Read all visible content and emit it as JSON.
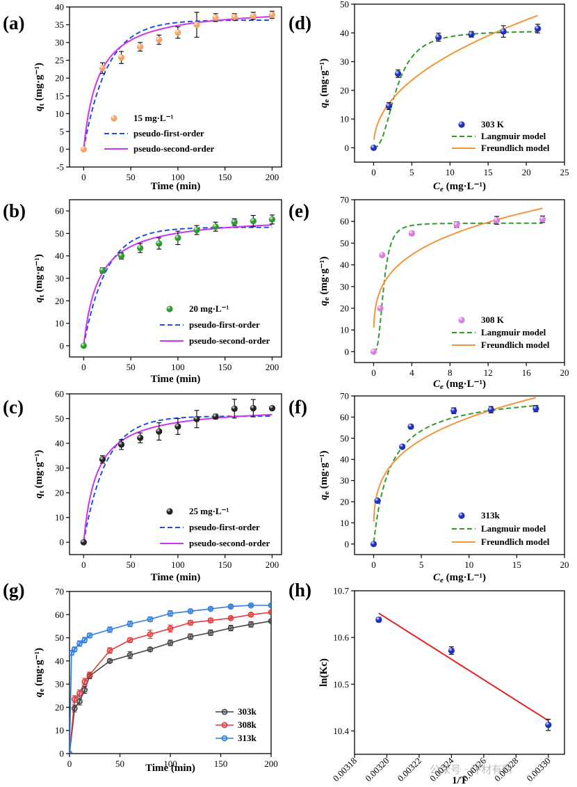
{
  "watermark": "公众号 · 环材有料",
  "chart_data": [
    {
      "id": "a",
      "panel_label": "(a)",
      "type": "line",
      "xlabel": "Time (min)",
      "ylabel_main": "q",
      "ylabel_sub": "t",
      "ylabel_unit": " (mg·g⁻¹)",
      "xlim": [
        -15,
        210
      ],
      "ylim": [
        -5,
        40
      ],
      "xticks": [
        0,
        50,
        100,
        150,
        200
      ],
      "yticks": [
        -5,
        0,
        5,
        10,
        15,
        20,
        25,
        30,
        35,
        40
      ],
      "legend_position": "bottom-right",
      "series": [
        {
          "name": "15 mg·L⁻¹",
          "kind": "points",
          "marker": "ball",
          "color": "#f4a46a",
          "x": [
            0,
            20,
            40,
            60,
            80,
            100,
            120,
            140,
            160,
            180,
            200
          ],
          "y": [
            0,
            22.8,
            25.8,
            28.8,
            30.8,
            32.8,
            35.0,
            37.0,
            37.2,
            37.5,
            37.8
          ],
          "err": [
            0,
            1.5,
            1.7,
            1.2,
            1.3,
            1.6,
            3.5,
            1.1,
            0.9,
            1.0,
            1.0
          ]
        },
        {
          "name": "pseudo-first-order",
          "kind": "model",
          "model": "pfo",
          "params": {
            "qe": 36.3,
            "k": 0.04
          },
          "color": "#1f4fe0",
          "dash": true
        },
        {
          "name": "pseudo-second-order",
          "kind": "model",
          "model": "pso",
          "params": {
            "qe": 40.2,
            "k": 0.0016
          },
          "color": "#cc33ee",
          "dash": false
        }
      ]
    },
    {
      "id": "b",
      "panel_label": "(b)",
      "type": "line",
      "xlabel": "Time (min)",
      "ylabel_main": "q",
      "ylabel_sub": "t",
      "ylabel_unit": " (mg·g⁻¹)",
      "xlim": [
        -15,
        210
      ],
      "ylim": [
        -5,
        65
      ],
      "xticks": [
        0,
        50,
        100,
        150,
        200
      ],
      "yticks": [
        0,
        10,
        20,
        30,
        40,
        50,
        60
      ],
      "legend_position": "bottom-right",
      "series": [
        {
          "name": "20 mg·L⁻¹",
          "kind": "points",
          "marker": "ball",
          "color": "#2e9a2e",
          "x": [
            0,
            20,
            40,
            60,
            80,
            100,
            120,
            140,
            160,
            180,
            200
          ],
          "y": [
            0,
            33.5,
            40,
            43.5,
            45.5,
            48,
            51.5,
            53,
            55,
            55.5,
            56.2
          ],
          "err": [
            0,
            1.2,
            1.4,
            2.0,
            2.5,
            3.0,
            2.0,
            2.0,
            1.5,
            2.5,
            2.0
          ]
        },
        {
          "name": "pseudo-first-order",
          "kind": "model",
          "model": "pfo",
          "params": {
            "qe": 52.7,
            "k": 0.042
          },
          "color": "#1f4fe0",
          "dash": true
        },
        {
          "name": "pseudo-second-order",
          "kind": "model",
          "model": "pso",
          "params": {
            "qe": 58.0,
            "k": 0.0011
          },
          "color": "#cc33ee",
          "dash": false
        }
      ]
    },
    {
      "id": "c",
      "panel_label": "(c)",
      "type": "line",
      "xlabel": "Time (min)",
      "ylabel_main": "q",
      "ylabel_sub": "t",
      "ylabel_unit": " (mg·g⁻¹)",
      "xlim": [
        -15,
        210
      ],
      "ylim": [
        -5,
        60
      ],
      "xticks": [
        0,
        50,
        100,
        150,
        200
      ],
      "yticks": [
        0,
        10,
        20,
        30,
        40,
        50,
        60
      ],
      "legend_position": "bottom-right",
      "series": [
        {
          "name": "25 mg·L⁻¹",
          "kind": "points",
          "marker": "ball",
          "color": "#222222",
          "x": [
            0,
            20,
            40,
            60,
            80,
            100,
            120,
            140,
            160,
            180,
            200
          ],
          "y": [
            0,
            33.5,
            39.5,
            42.2,
            44.8,
            46.8,
            49.8,
            50.8,
            54.0,
            54.2,
            54.2
          ],
          "err": [
            0,
            1.5,
            2.0,
            2.0,
            3.5,
            3.2,
            3.5,
            1.0,
            3.8,
            3.5,
            0.8
          ]
        },
        {
          "name": "pseudo-first-order",
          "kind": "model",
          "model": "pfo",
          "params": {
            "qe": 51.0,
            "k": 0.042
          },
          "color": "#1f4fe0",
          "dash": true
        },
        {
          "name": "pseudo-second-order",
          "kind": "model",
          "model": "pso",
          "params": {
            "qe": 55.2,
            "k": 0.0013
          },
          "color": "#cc33ee",
          "dash": false
        }
      ]
    },
    {
      "id": "d",
      "panel_label": "(d)",
      "type": "line",
      "xlabel_main": "C",
      "xlabel_sub": "e",
      "xlabel_unit": " (mg·L⁻¹)",
      "ylabel_main": "q",
      "ylabel_sub": "e",
      "ylabel_unit": " (mg·g⁻¹)",
      "xlim": [
        -2.5,
        25
      ],
      "ylim": [
        -5,
        50
      ],
      "xticks": [
        0,
        5,
        10,
        15,
        20,
        25
      ],
      "yticks": [
        0,
        10,
        20,
        30,
        40,
        50
      ],
      "legend_position": "bottom-right",
      "series": [
        {
          "name": "303 K",
          "kind": "points",
          "marker": "ball",
          "color": "#1f2fc0",
          "x": [
            0,
            2,
            3.2,
            8.5,
            12.8,
            17,
            21.5
          ],
          "y": [
            0,
            14.5,
            25.8,
            38.5,
            39.5,
            40.5,
            41.5
          ],
          "err": [
            0,
            1.2,
            1.3,
            1.4,
            1.0,
            2.0,
            1.5
          ]
        },
        {
          "name": "Langmuir model",
          "kind": "model",
          "model": "langmuir_hill",
          "params": {
            "qm": 40.8,
            "K": 3.0,
            "n": 2.4
          },
          "x_range": [
            0,
            21.5
          ],
          "color": "#2e9a2e",
          "dash": true
        },
        {
          "name": "Freundlich model",
          "kind": "model",
          "model": "freundlich",
          "params": {
            "KF": 11.2,
            "n": 2.17
          },
          "x_range": [
            0.05,
            21.5
          ],
          "color": "#f2943a",
          "dash": false
        }
      ]
    },
    {
      "id": "e",
      "panel_label": "(e)",
      "type": "line",
      "xlabel_main": "C",
      "xlabel_sub": "e",
      "xlabel_unit": " (mg·L⁻¹)",
      "ylabel_main": "q",
      "ylabel_sub": "e",
      "ylabel_unit": " (mg·g⁻¹)",
      "xlim": [
        -2,
        20
      ],
      "ylim": [
        -5,
        70
      ],
      "xticks": [
        0,
        4,
        8,
        12,
        16,
        20
      ],
      "yticks": [
        0,
        10,
        20,
        30,
        40,
        50,
        60,
        70
      ],
      "legend_position": "bottom-right",
      "series": [
        {
          "name": "308 K",
          "kind": "points",
          "marker": "ball",
          "color": "#d97fe0",
          "x": [
            0,
            0.7,
            0.9,
            4,
            8.7,
            12.9,
            17.7
          ],
          "y": [
            0,
            20,
            44.5,
            54.5,
            58.5,
            60.5,
            61
          ],
          "err": [
            0,
            0.5,
            0.7,
            1.0,
            1.3,
            1.8,
            1.5
          ]
        },
        {
          "name": "Langmuir model",
          "kind": "model",
          "model": "langmuir_hill",
          "params": {
            "qm": 59.2,
            "K": 1.05,
            "n": 3.0
          },
          "x_range": [
            0,
            17.7
          ],
          "color": "#2e9a2e",
          "dash": true
        },
        {
          "name": "Freundlich model",
          "kind": "model",
          "model": "freundlich",
          "params": {
            "KF": 31.0,
            "n": 3.8
          },
          "x_range": [
            0.02,
            17.7
          ],
          "color": "#f2943a",
          "dash": false
        }
      ]
    },
    {
      "id": "f",
      "panel_label": "(f)",
      "type": "line",
      "xlabel_main": "C",
      "xlabel_sub": "e",
      "xlabel_unit": " (mg·L⁻¹)",
      "ylabel_main": "q",
      "ylabel_sub": "e",
      "ylabel_unit": " (mg·g⁻¹)",
      "xlim": [
        -2,
        20
      ],
      "ylim": [
        -5,
        70
      ],
      "xticks": [
        0,
        5,
        10,
        15,
        20
      ],
      "yticks": [
        0,
        10,
        20,
        30,
        40,
        50,
        60,
        70
      ],
      "legend_position": "bottom-right",
      "series": [
        {
          "name": "313k",
          "kind": "points",
          "marker": "ball",
          "color": "#1f2fc0",
          "x": [
            0,
            0.4,
            3.0,
            3.9,
            8.4,
            12.3,
            17.0
          ],
          "y": [
            0,
            20.5,
            46,
            55.5,
            63,
            63.5,
            64
          ],
          "err": [
            0,
            0.6,
            0.7,
            1.0,
            1.4,
            1.5,
            1.5
          ]
        },
        {
          "name": "Langmuir model",
          "kind": "model",
          "model": "langmuir",
          "params": {
            "qm": 72.0,
            "K": 0.58
          },
          "x_range": [
            0.02,
            17
          ],
          "color": "#2e9a2e",
          "dash": true
        },
        {
          "name": "Freundlich model",
          "kind": "model",
          "model": "freundlich",
          "params": {
            "KF": 31.5,
            "n": 3.6
          },
          "x_range": [
            0.02,
            17
          ],
          "color": "#f2943a",
          "dash": false
        }
      ]
    },
    {
      "id": "g",
      "panel_label": "(g)",
      "type": "line",
      "xlabel": "Time (min)",
      "ylabel_main": "q",
      "ylabel_sub": "e",
      "ylabel_unit": " (mg·g⁻¹)",
      "xlim": [
        0,
        200
      ],
      "ylim": [
        0,
        70
      ],
      "xticks": [
        0,
        50,
        100,
        150,
        200
      ],
      "yticks": [
        0,
        10,
        20,
        30,
        40,
        50,
        60,
        70
      ],
      "legend_position": "bottom-right",
      "series": [
        {
          "name": "303k",
          "kind": "polyline",
          "marker": "circle",
          "color": "#444444",
          "x": [
            0,
            5,
            10,
            15,
            20,
            40,
            60,
            80,
            100,
            120,
            140,
            160,
            180,
            200
          ],
          "y": [
            0,
            19.5,
            22.5,
            27.5,
            33.5,
            40,
            42.5,
            45,
            47.8,
            50.5,
            52.2,
            54.2,
            55.8,
            57.2
          ],
          "err": [
            0,
            1.5,
            1.5,
            1.5,
            1.2,
            0.8,
            1.5,
            0.8,
            1.2,
            1.2,
            1.2,
            1.2,
            1.2,
            0.5
          ]
        },
        {
          "name": "308k",
          "kind": "polyline",
          "marker": "circle",
          "color": "#e03a3a",
          "x": [
            0,
            5,
            10,
            15,
            20,
            40,
            60,
            80,
            100,
            120,
            140,
            160,
            180,
            200
          ],
          "y": [
            0,
            23.5,
            26,
            31,
            34,
            44.5,
            49,
            51.5,
            54,
            56.5,
            57.5,
            58.5,
            60,
            61
          ],
          "err": [
            0,
            1.5,
            1.5,
            1.5,
            1.2,
            1.2,
            1.0,
            1.8,
            1.5,
            1.0,
            1.0,
            0.5,
            0.8,
            0.5
          ]
        },
        {
          "name": "313k",
          "kind": "polyline",
          "marker": "circle",
          "color": "#2e7be0",
          "x": [
            0,
            2,
            5,
            10,
            15,
            20,
            40,
            60,
            80,
            100,
            120,
            140,
            160,
            180,
            200
          ],
          "y": [
            0,
            43.5,
            45,
            47.5,
            49,
            51,
            53.5,
            56,
            58,
            60.5,
            61.5,
            62.5,
            63.5,
            64,
            64
          ],
          "err": [
            0,
            1.0,
            1.0,
            1.2,
            1.2,
            1.0,
            1.2,
            1.2,
            1.0,
            1.2,
            0.8,
            0.6,
            0.6,
            0.5,
            0.5
          ]
        }
      ]
    },
    {
      "id": "h",
      "panel_label": "(h)",
      "type": "scatter",
      "xlabel": "1/T",
      "ylabel": "ln(Kc)",
      "xlim": [
        0.00318,
        0.00331
      ],
      "ylim": [
        10.35,
        10.7
      ],
      "xticks": [
        0.00318,
        0.0032,
        0.00322,
        0.00324,
        0.00326,
        0.00328,
        0.0033
      ],
      "xticklabels": [
        "0.00318",
        "0.00320",
        "0.00322",
        "0.00324",
        "0.00326",
        "0.00328",
        "0.00330"
      ],
      "yticks": [
        10.4,
        10.5,
        10.6,
        10.7
      ],
      "series": [
        {
          "name": "",
          "kind": "points",
          "marker": "ball",
          "color": "#1f2fc0",
          "x": [
            0.003195,
            0.00324,
            0.0033
          ],
          "y": [
            10.638,
            10.572,
            10.413
          ],
          "err": [
            0.005,
            0.008,
            0.012
          ]
        },
        {
          "name": "",
          "kind": "fitline",
          "color": "#e3241c",
          "x": [
            0.003195,
            0.0033
          ],
          "y": [
            10.652,
            10.422
          ]
        }
      ]
    }
  ]
}
